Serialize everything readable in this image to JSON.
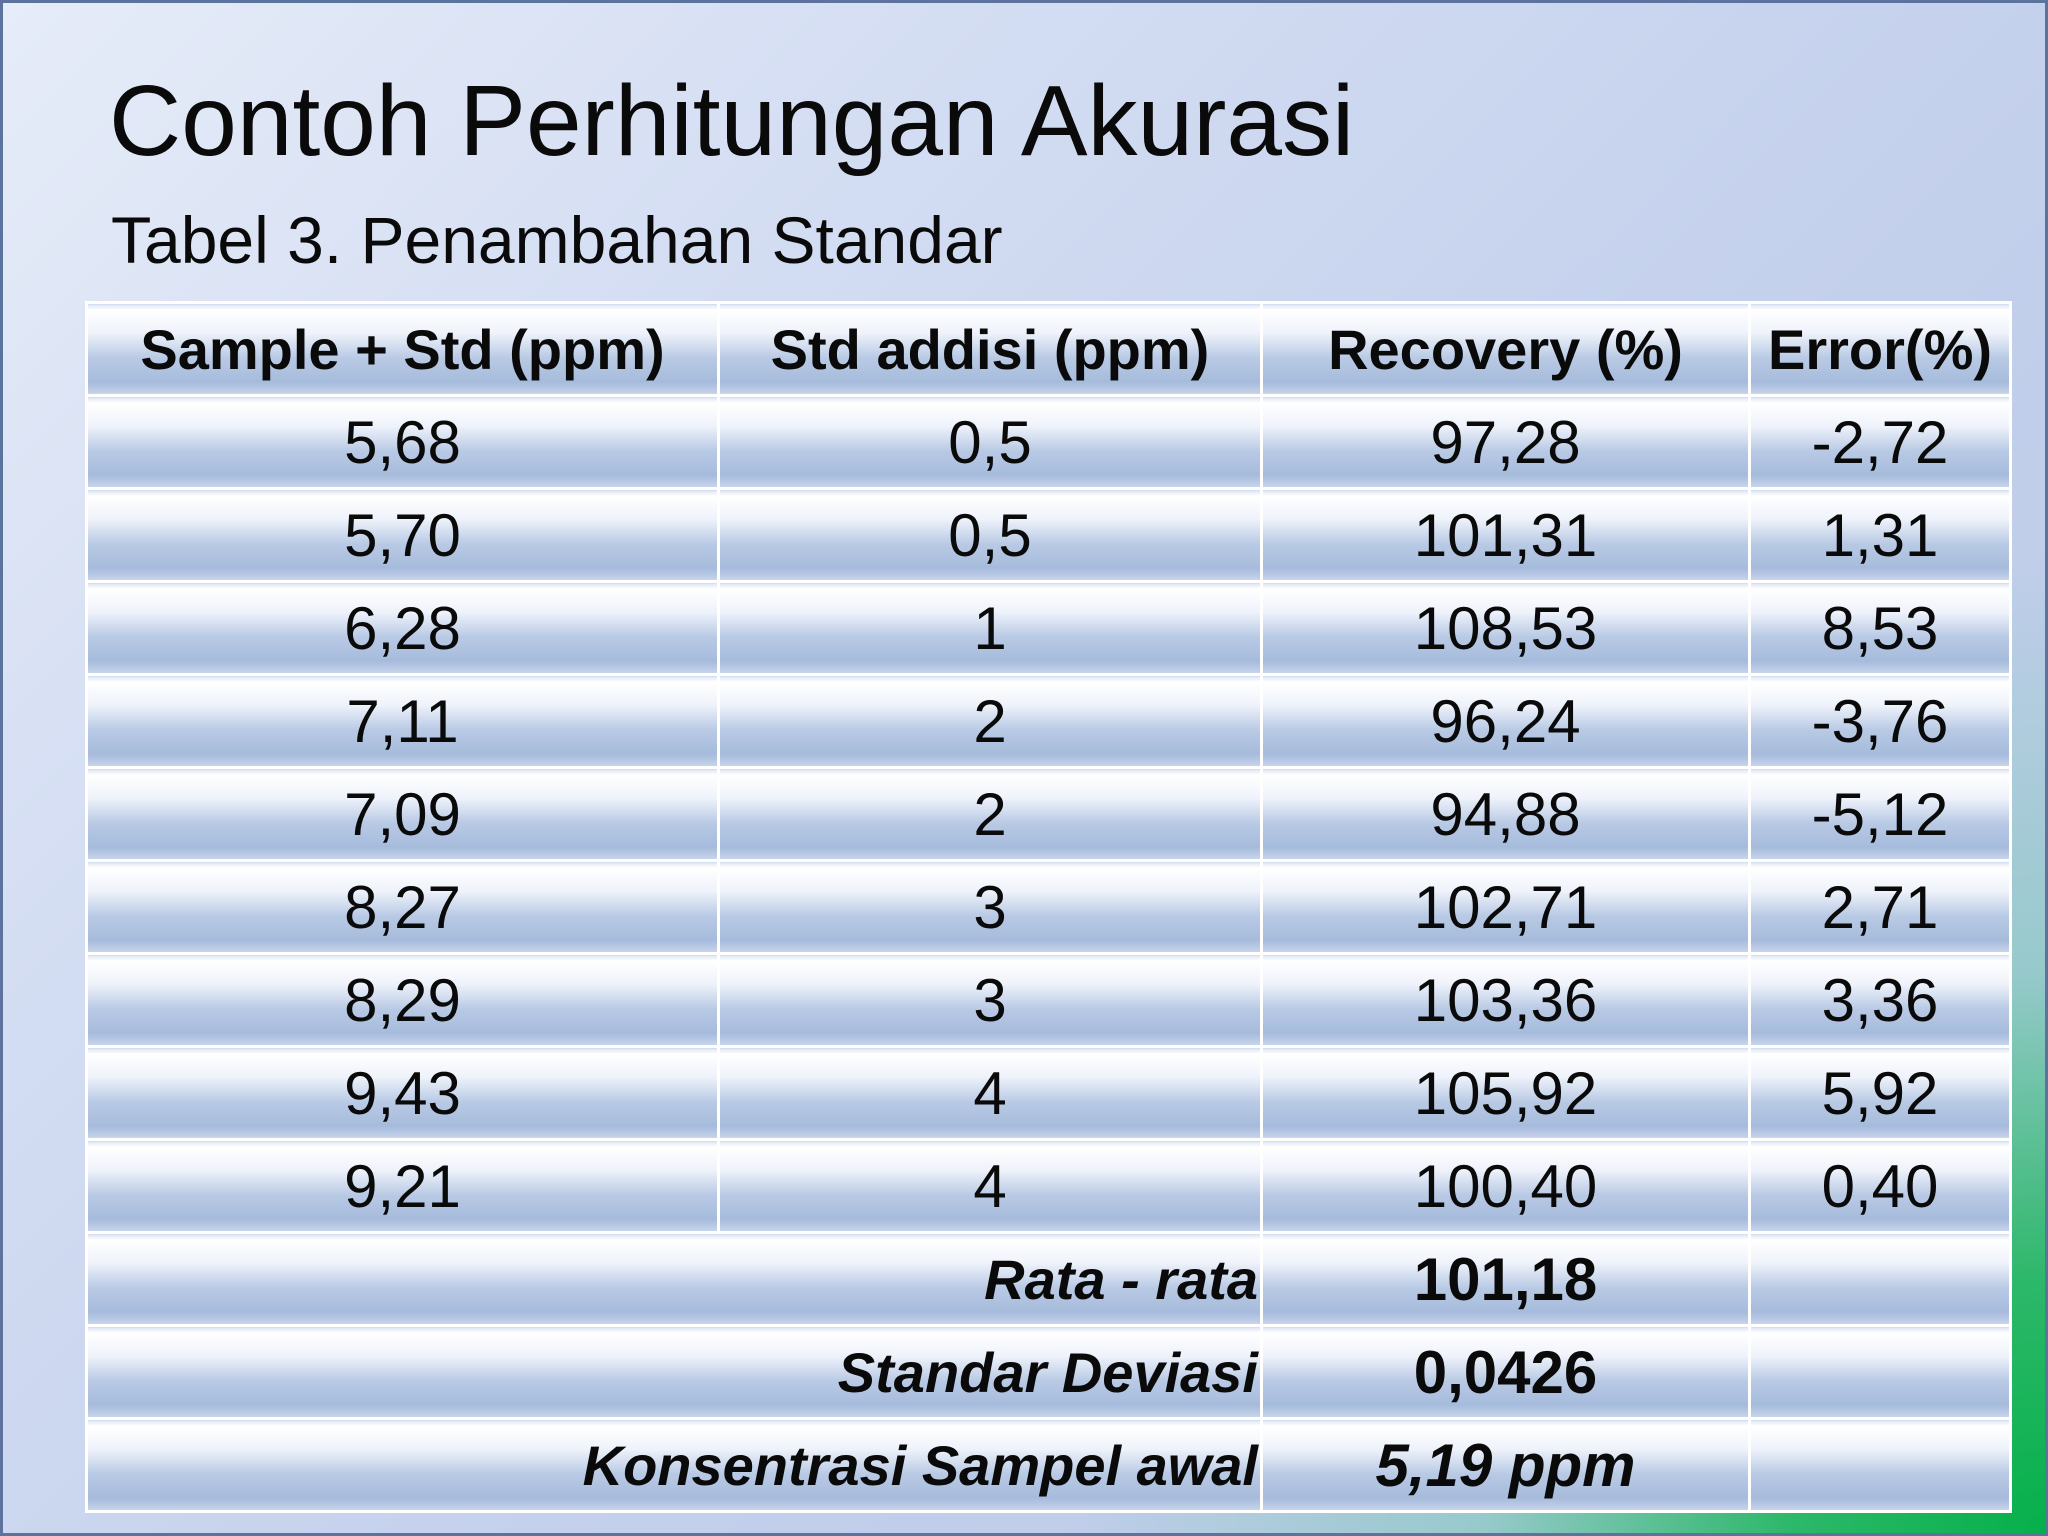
{
  "slide": {
    "title": "Contoh Perhitungan Akurasi",
    "subtitle": "Tabel 3. Penambahan Standar"
  },
  "table": {
    "headers": [
      "Sample + Std (ppm)",
      "Std addisi (ppm)",
      "Recovery (%)",
      "Error(%)"
    ],
    "rows": [
      [
        "5,68",
        "0,5",
        "97,28",
        "-2,72"
      ],
      [
        "5,70",
        "0,5",
        "101,31",
        "1,31"
      ],
      [
        "6,28",
        "1",
        "108,53",
        "8,53"
      ],
      [
        "7,11",
        "2",
        "96,24",
        "-3,76"
      ],
      [
        "7,09",
        "2",
        "94,88",
        "-5,12"
      ],
      [
        "8,27",
        "3",
        "102,71",
        "2,71"
      ],
      [
        "8,29",
        "3",
        "103,36",
        "3,36"
      ],
      [
        "9,43",
        "4",
        "105,92",
        "5,92"
      ],
      [
        "9,21",
        "4",
        "100,40",
        "0,40"
      ]
    ],
    "summary": [
      {
        "label": "Rata - rata",
        "value": "101,18"
      },
      {
        "label": "Standar Deviasi",
        "value": "0,0426"
      },
      {
        "label": "Konsentrasi Sampel awal",
        "value": "5,19 ppm"
      }
    ]
  }
}
